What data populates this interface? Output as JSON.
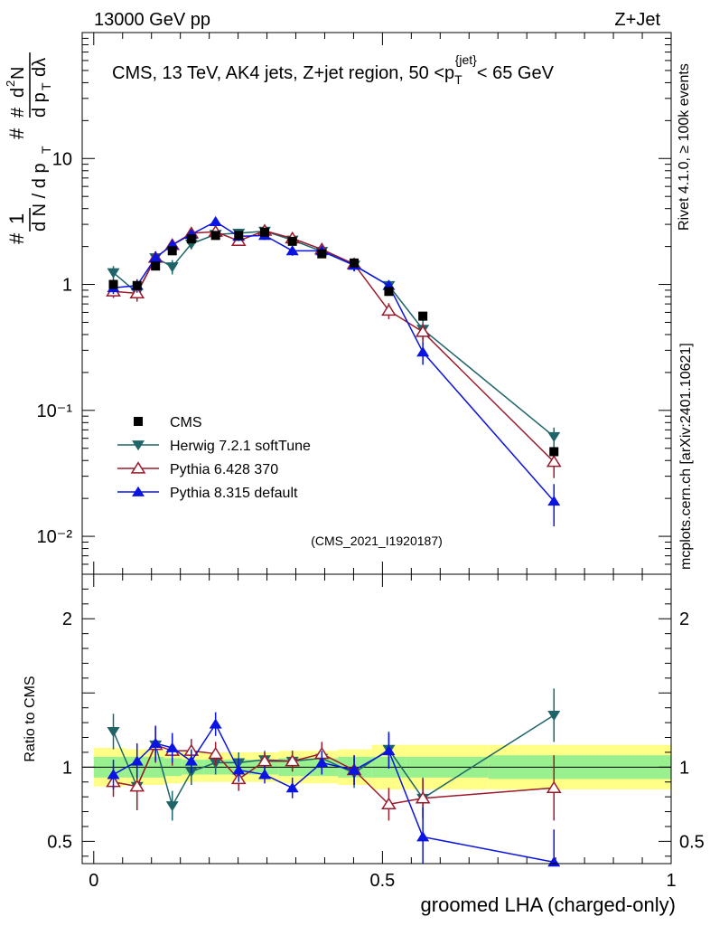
{
  "header": {
    "left": "13000 GeV pp",
    "right": "Z+Jet"
  },
  "side_labels": {
    "rivet": "Rivet 4.1.0, ≥ 100k events",
    "mcplots": "mcplots.cern.ch [arXiv:2401.10621]"
  },
  "chart_data": {
    "type": "line",
    "title": "CMS, 13 TeV, AK4 jets, Z+jet region, 50 <p_T^{jet}< 65 GeV",
    "analysis_id": "(CMS_2021_I1920187)",
    "xlabel": "groomed LHA (charged-only)",
    "ylabel": "1/dN/dp_T  d²N/dp_T dλ",
    "ratio_ylabel": "Ratio to CMS",
    "xlim": [
      -0.02,
      1.0
    ],
    "main_ylim": [
      0.005,
      100
    ],
    "main_yscale": "log",
    "ratio_ylim": [
      0.35,
      2.3
    ],
    "x_ticks": [
      "0",
      "0.5",
      "1"
    ],
    "main_y_ticks": [
      "10⁻²",
      "10⁻¹",
      "1",
      "10"
    ],
    "ratio_y_ticks": [
      "0.5",
      "1",
      "2"
    ],
    "x": [
      0.034,
      0.075,
      0.107,
      0.136,
      0.169,
      0.211,
      0.251,
      0.296,
      0.344,
      0.395,
      0.451,
      0.511,
      0.57,
      0.797
    ],
    "data": {
      "name": "CMS",
      "values": [
        1.0,
        0.98,
        1.4,
        1.85,
        2.3,
        2.45,
        2.45,
        2.6,
        2.2,
        1.75,
        1.48,
        0.88,
        0.56,
        0.047
      ],
      "band_inner": [
        0.07,
        0.07,
        0.07,
        0.06,
        0.05,
        0.05,
        0.05,
        0.05,
        0.06,
        0.06,
        0.07,
        0.07,
        0.07,
        0.08
      ],
      "band_outer": [
        0.13,
        0.12,
        0.12,
        0.11,
        0.1,
        0.1,
        0.1,
        0.1,
        0.11,
        0.11,
        0.12,
        0.15,
        0.15,
        0.15
      ]
    },
    "series": [
      {
        "name": "Herwig 7.2.1 softTune",
        "color": "#1f6469",
        "marker": "triangle-down",
        "values": [
          1.24,
          0.86,
          1.63,
          1.38,
          2.1,
          2.5,
          2.55,
          2.65,
          2.25,
          1.83,
          1.42,
          0.98,
          0.44,
          0.062
        ],
        "errors": [
          0.16,
          0.12,
          0.2,
          0.18,
          0.2,
          0.2,
          0.2,
          0.2,
          0.18,
          0.15,
          0.15,
          0.1,
          0.08,
          0.011
        ],
        "ratio": [
          1.24,
          0.87,
          1.15,
          0.74,
          0.97,
          1.03,
          1.03,
          1.05,
          1.04,
          1.06,
          0.96,
          1.12,
          0.79,
          1.35
        ],
        "ratio_err": [
          0.12,
          0.16,
          0.12,
          0.1,
          0.09,
          0.08,
          0.07,
          0.06,
          0.07,
          0.08,
          0.1,
          0.12,
          0.14,
          0.18
        ]
      },
      {
        "name": "Pythia 6.428 370",
        "color": "#9b1a2b",
        "marker": "triangle-up-open",
        "values": [
          0.88,
          0.85,
          1.63,
          2.06,
          2.55,
          2.62,
          2.22,
          2.67,
          2.32,
          1.9,
          1.45,
          0.62,
          0.42,
          0.039
        ],
        "errors": [
          0.1,
          0.12,
          0.2,
          0.2,
          0.22,
          0.22,
          0.2,
          0.2,
          0.18,
          0.15,
          0.15,
          0.09,
          0.07,
          0.01
        ],
        "ratio": [
          0.9,
          0.87,
          1.15,
          1.11,
          1.11,
          1.09,
          0.92,
          1.04,
          1.04,
          1.09,
          0.98,
          0.75,
          0.79,
          0.86
        ],
        "ratio_err": [
          0.1,
          0.16,
          0.12,
          0.1,
          0.08,
          0.08,
          0.08,
          0.06,
          0.07,
          0.08,
          0.1,
          0.11,
          0.13,
          0.22
        ]
      },
      {
        "name": "Pythia 8.315 default",
        "color": "#0b14e0",
        "marker": "triangle-up",
        "values": [
          0.94,
          0.98,
          1.63,
          2.06,
          2.5,
          3.15,
          2.41,
          2.45,
          1.85,
          1.85,
          1.42,
          0.98,
          0.29,
          0.019
        ],
        "errors": [
          0.1,
          0.12,
          0.2,
          0.2,
          0.22,
          0.25,
          0.2,
          0.2,
          0.16,
          0.15,
          0.15,
          0.1,
          0.06,
          0.007
        ],
        "ratio": [
          0.95,
          1.04,
          1.16,
          1.13,
          1.04,
          1.29,
          0.98,
          0.95,
          0.86,
          1.03,
          0.98,
          1.11,
          0.53,
          0.36
        ],
        "ratio_err": [
          0.1,
          0.12,
          0.12,
          0.1,
          0.08,
          0.08,
          0.08,
          0.06,
          0.07,
          0.08,
          0.1,
          0.12,
          0.2,
          0.22
        ]
      }
    ]
  }
}
